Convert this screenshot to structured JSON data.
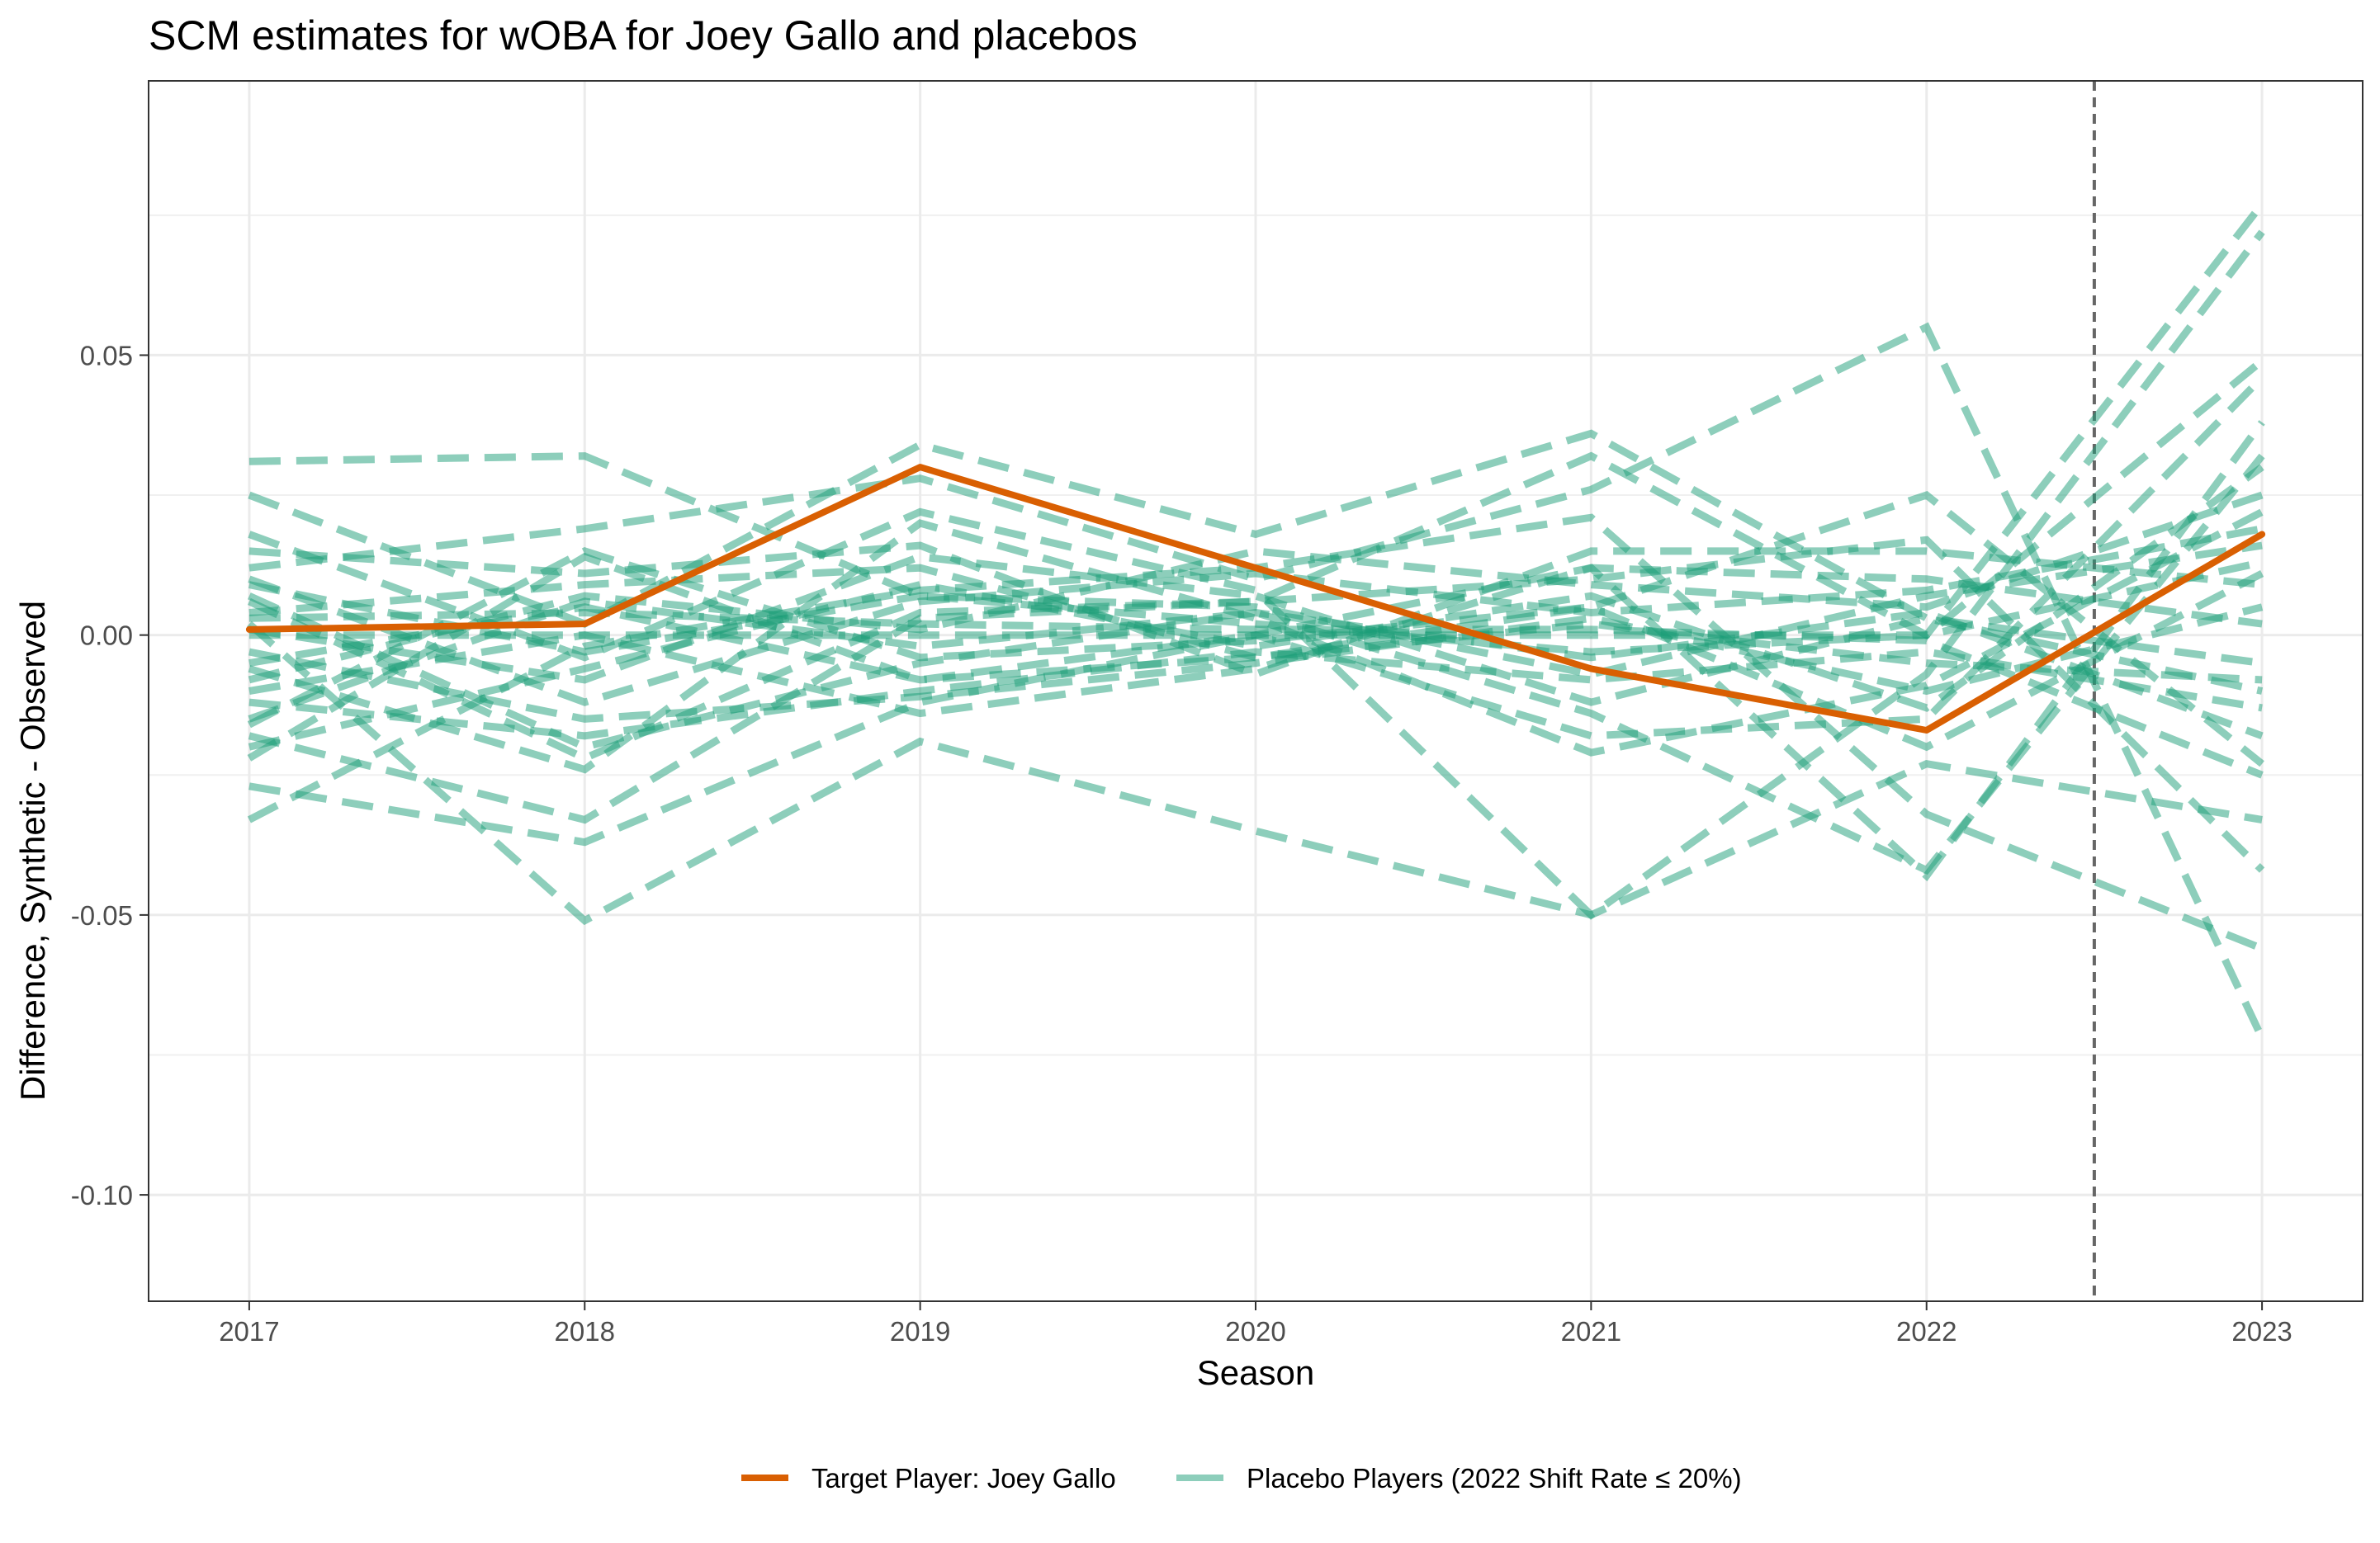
{
  "chart_data": {
    "type": "line",
    "title": "SCM estimates for wOBA for Joey Gallo and placebos",
    "xlabel": "Season",
    "ylabel": "Difference, Synthetic - Observed",
    "x": [
      2017,
      2018,
      2019,
      2020,
      2021,
      2022,
      2023
    ],
    "x_tick_labels": [
      "2017",
      "2018",
      "2019",
      "2020",
      "2021",
      "2022",
      "2023"
    ],
    "xlim": [
      2016.7,
      2023.3
    ],
    "ylim": [
      -0.119,
      0.099
    ],
    "y_ticks": [
      -0.1,
      -0.05,
      0.0,
      0.05
    ],
    "y_tick_labels": [
      "-0.10",
      "-0.05",
      "0.00",
      "0.05"
    ],
    "grid": true,
    "treatment_line_x": 2022.5,
    "legend_position": "bottom",
    "colors": {
      "target": "#d95f02",
      "placebo": "#1b9e77",
      "treatment_line": "#666666"
    },
    "target": {
      "name": "Target Player: Joey Gallo",
      "values": [
        0.001,
        0.002,
        0.03,
        0.012,
        -0.006,
        -0.017,
        0.018
      ]
    },
    "placebo_legend_label": "Placebo Players (2022 Shift Rate ≤ 20%)",
    "placebos": [
      [
        0.031,
        0.032,
        0.007,
        0.002,
        -0.003,
        0.0,
        0.077
      ],
      [
        0.025,
        0.002,
        0.034,
        0.018,
        0.036,
        0.003,
        -0.005
      ],
      [
        0.018,
        -0.004,
        0.022,
        0.008,
        -0.05,
        -0.007,
        0.072
      ],
      [
        0.012,
        0.019,
        0.028,
        0.01,
        0.026,
        0.055,
        -0.072
      ],
      [
        0.006,
        -0.022,
        0.004,
        0.006,
        0.032,
        0.0,
        0.049
      ],
      [
        -0.033,
        -0.002,
        0.008,
        0.012,
        0.021,
        -0.032,
        -0.056
      ],
      [
        -0.027,
        -0.037,
        -0.012,
        0.0,
        -0.018,
        -0.015,
        0.046
      ],
      [
        0.002,
        -0.051,
        -0.019,
        -0.035,
        -0.05,
        -0.023,
        -0.033
      ],
      [
        -0.022,
        0.014,
        -0.008,
        0.0,
        0.012,
        -0.043,
        0.038
      ],
      [
        -0.018,
        -0.033,
        0.003,
        0.006,
        0.01,
        0.017,
        -0.042
      ],
      [
        0.004,
        0.009,
        0.012,
        -0.004,
        0.005,
        0.025,
        -0.023
      ],
      [
        -0.015,
        0.006,
        -0.002,
        0.004,
        -0.014,
        -0.042,
        0.032
      ],
      [
        -0.008,
        0.007,
        0.001,
        0.015,
        0.009,
        0.005,
        0.025
      ],
      [
        -0.012,
        -0.018,
        -0.01,
        -0.003,
        -0.008,
        -0.003,
        -0.013
      ],
      [
        0.01,
        -0.012,
        0.006,
        0.011,
        0.004,
        0.008,
        0.019
      ],
      [
        -0.006,
        -0.024,
        0.02,
        0.003,
        -0.021,
        -0.009,
        0.022
      ],
      [
        0.015,
        0.011,
        0.016,
        -0.007,
        0.015,
        0.015,
        0.009
      ],
      [
        0.0,
        0.0,
        0.0,
        0.0,
        0.0,
        0.0,
        0.013
      ],
      [
        -0.003,
        -0.015,
        -0.011,
        -0.005,
        0.003,
        -0.01,
        0.005
      ],
      [
        0.007,
        -0.02,
        -0.005,
        0.004,
        -0.004,
        0.004,
        -0.018
      ],
      [
        -0.02,
        -0.006,
        0.009,
        -0.002,
        0.007,
        -0.013,
        0.03
      ],
      [
        0.003,
        0.004,
        0.002,
        0.001,
        0.001,
        -0.001,
        -0.025
      ],
      [
        -0.01,
        0.0,
        -0.014,
        -0.006,
        0.012,
        0.01,
        0.002
      ],
      [
        0.001,
        -0.008,
        0.014,
        0.007,
        -0.012,
        0.003,
        -0.01
      ],
      [
        -0.016,
        0.015,
        -0.004,
        -0.001,
        0.005,
        -0.02,
        0.011
      ],
      [
        0.009,
        -0.003,
        0.007,
        0.005,
        -0.007,
        0.007,
        0.016
      ],
      [
        -0.005,
        0.005,
        -0.008,
        -0.004,
        0.002,
        -0.005,
        -0.008
      ]
    ]
  }
}
